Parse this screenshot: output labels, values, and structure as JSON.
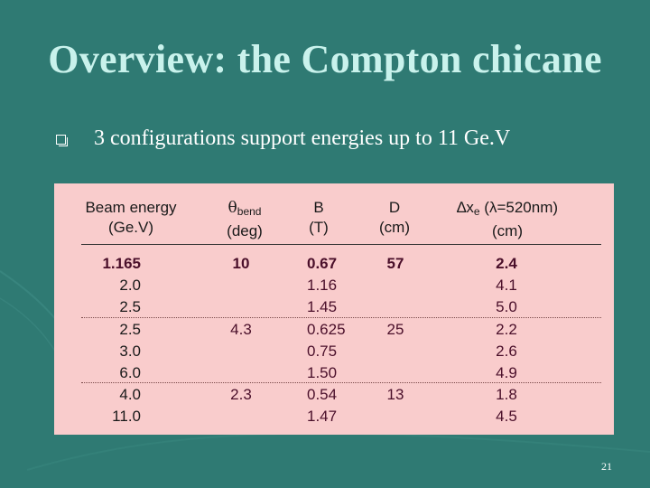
{
  "slide": {
    "title": "Overview: the Compton chicane",
    "bullet": "3 configurations support energies up to 11 Ge.V",
    "page_number": "21"
  },
  "table": {
    "headers": {
      "energy_l1": "Beam energy",
      "energy_l2": "(Ge.V)",
      "theta_sym": "θ",
      "theta_sub": "bend",
      "theta_l2": "(deg)",
      "b_l1": "B",
      "b_l2": "(T)",
      "d_l1": "D",
      "d_l2": "(cm)",
      "dx_sym": "∆x",
      "dx_sub": "e",
      "dx_rest": " (λ=520nm)",
      "dx_l2": "(cm)"
    },
    "energy": [
      "1.165",
      "2.0",
      "2.5",
      "2.5",
      "3.0",
      "6.0",
      "4.0",
      "11.0"
    ],
    "theta": [
      "10",
      "4.3",
      "2.3"
    ],
    "b": [
      "0.67",
      "1.16",
      "1.45",
      "0.625",
      "0.75",
      "1.50",
      "0.54",
      "1.47"
    ],
    "d": [
      "57",
      "25",
      "13"
    ],
    "dx": [
      "2.4",
      "4.1",
      "5.0",
      "2.2",
      "2.6",
      "4.9",
      "1.8",
      "4.5"
    ]
  },
  "colors": {
    "background": "#2f7a73",
    "title": "#c9f2ec",
    "table_fill": "#f9cccc",
    "value_text": "#4a0f2a"
  }
}
